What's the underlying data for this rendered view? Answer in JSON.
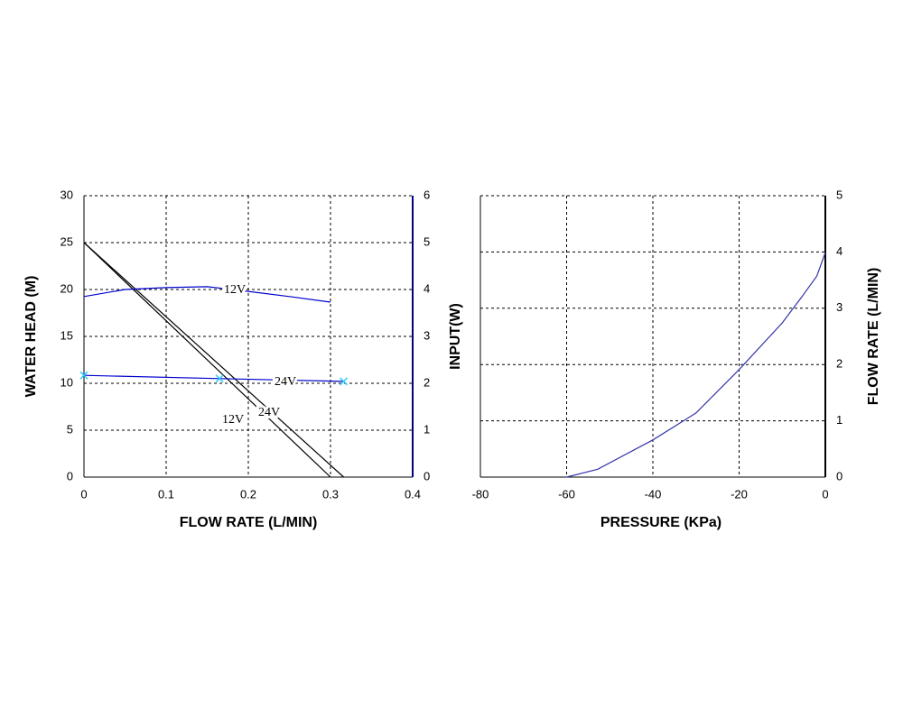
{
  "chart_data": [
    {
      "type": "line",
      "xlabel": "FLOW RATE (L/MIN)",
      "ylabel": "WATER HEAD (M)",
      "y2label": "INPUT(W)",
      "xlim": [
        0,
        0.4
      ],
      "xticks": [
        0,
        0.1,
        0.2,
        0.3,
        0.4
      ],
      "ylim": [
        0,
        30
      ],
      "yticks": [
        0,
        5,
        10,
        15,
        20,
        25,
        30
      ],
      "y2lim": [
        0,
        6
      ],
      "y2ticks": [
        0,
        1,
        2,
        3,
        4,
        5,
        6
      ],
      "grid": true,
      "series": [
        {
          "name": "12V",
          "color": "#000000",
          "x": [
            0,
            0.3
          ],
          "values": [
            25,
            0
          ]
        },
        {
          "name": "24V",
          "color": "#000000",
          "x": [
            0,
            0.316
          ],
          "values": [
            25,
            0
          ]
        },
        {
          "name": "12V",
          "color": "#0000cc",
          "axis": "y2",
          "x": [
            0,
            0.05,
            0.1,
            0.15,
            0.2,
            0.25,
            0.3
          ],
          "values": [
            3.85,
            4.0,
            4.04,
            4.06,
            3.96,
            3.85,
            3.73
          ]
        },
        {
          "name": "24V",
          "color": "#0000cc",
          "axis": "y2",
          "marker": "x",
          "marker_color": "#33ccff",
          "x": [
            0,
            0.165,
            0.316
          ],
          "values": [
            2.17,
            2.1,
            2.04
          ]
        }
      ]
    },
    {
      "type": "line",
      "xlabel": "PRESSURE (KPa)",
      "y2label": "FLOW RATE (L/MIN)",
      "xlim": [
        -80,
        0
      ],
      "xticks": [
        -80,
        -60,
        -40,
        -20,
        0
      ],
      "y2lim": [
        0,
        5
      ],
      "y2ticks": [
        0,
        1,
        2,
        3,
        4,
        5
      ],
      "grid": true,
      "series": [
        {
          "color": "#3333aa",
          "axis": "y2",
          "x": [
            -60,
            -52.8,
            -40,
            -30,
            -20,
            -10,
            -5,
            -2,
            0
          ],
          "values": [
            0,
            0.14,
            0.66,
            1.14,
            1.91,
            2.74,
            3.25,
            3.57,
            3.99
          ]
        }
      ]
    }
  ]
}
